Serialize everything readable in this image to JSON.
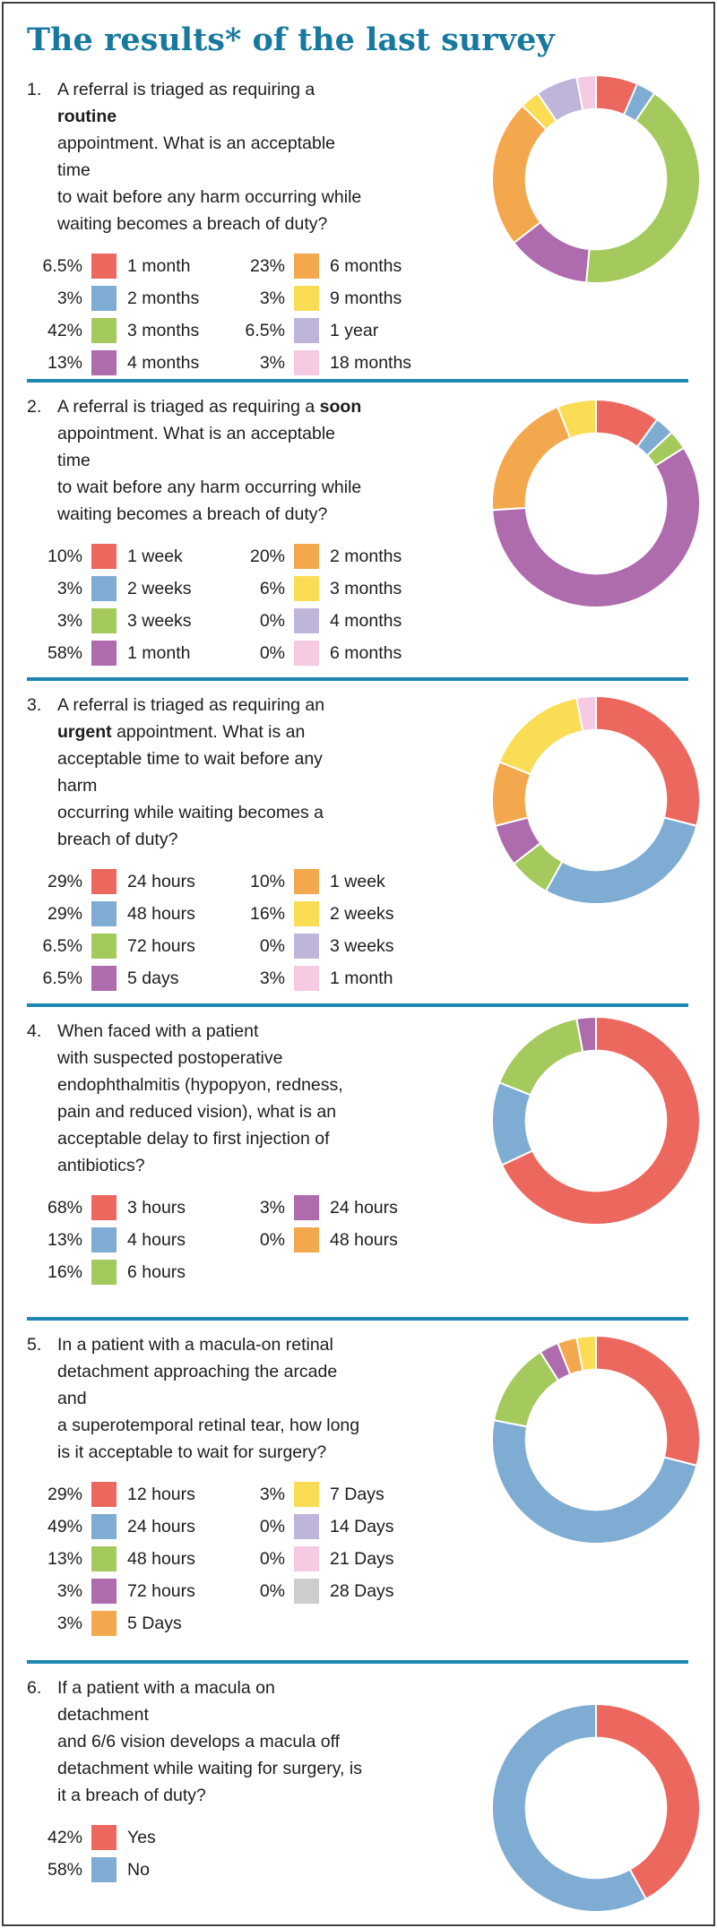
{
  "title": "The results* of the last survey",
  "divider_color": "#1F86B4",
  "title_color": "#17799E",
  "palette": {
    "red": "#EC685F",
    "blue": "#7EACD2",
    "green": "#A4C95C",
    "purple": "#AE6BAD",
    "orange": "#F4A84D",
    "yellow": "#FADD55",
    "lavender": "#BFB5DA",
    "pink": "#F5CAE2",
    "gray": "#CDCDCD"
  },
  "sections": [
    {
      "number": "1.",
      "question_pre": "A referral is triaged as requiring a ",
      "question_bold": "routine",
      "question_post": "\nappointment. What is an acceptable time\nto wait before any harm occurring while\nwaiting becomes a breach of duty?",
      "col_split": 4
    },
    {
      "number": "2.",
      "question_pre": "A referral is triaged as requiring a ",
      "question_bold": "soon",
      "question_post": "\nappointment. What is an acceptable time\nto wait before any harm occurring while\nwaiting becomes a breach of duty?",
      "col_split": 4
    },
    {
      "number": "3.",
      "question_pre": "A referral is triaged as requiring an\n",
      "question_bold": "urgent",
      "question_post": " appointment. What is an\nacceptable time to wait before any harm\noccurring while waiting becomes a\nbreach of duty?",
      "col_split": 4
    },
    {
      "number": "4.",
      "question_pre": "When faced with a patient\nwith suspected postoperative\nendophthalmitis (hypopyon, redness,\npain and reduced vision), what is an\nacceptable delay to first injection of\nantibiotics?",
      "question_bold": "",
      "question_post": "",
      "col_split": 3
    },
    {
      "number": "5.",
      "question_pre": "In a patient with a macula-on retinal\ndetachment approaching the arcade and\na superotemporal retinal tear, how long\nis it acceptable to wait for surgery?",
      "question_bold": "",
      "question_post": "",
      "col_split": 5
    },
    {
      "number": "6.",
      "question_pre": "If a patient with a macula on detachment\nand 6/6 vision develops a macula off\ndetachment while waiting for surgery, is\nit a breach of duty?",
      "question_bold": "",
      "question_post": "",
      "col_split": 2
    }
  ],
  "chart_data": [
    {
      "type": "pie",
      "donut": true,
      "title": "Q1 routine referral acceptable wait",
      "categories": [
        "1 month",
        "2 months",
        "3 months",
        "4 months",
        "6 months",
        "9 months",
        "1 year",
        "18 months"
      ],
      "values": [
        6.5,
        3,
        42,
        13,
        23,
        3,
        6.5,
        3
      ],
      "pct_labels": [
        "6.5%",
        "3%",
        "42%",
        "13%",
        "23%",
        "3%",
        "6.5%",
        "3%"
      ],
      "colors": [
        "#EC685F",
        "#7EACD2",
        "#A4C95C",
        "#AE6BAD",
        "#F4A84D",
        "#FADD55",
        "#BFB5DA",
        "#F5CAE2"
      ],
      "start_angle_deg": 0,
      "direction": "clockwise"
    },
    {
      "type": "pie",
      "donut": true,
      "title": "Q2 soon referral acceptable wait",
      "categories": [
        "1 week",
        "2 weeks",
        "3 weeks",
        "1 month",
        "2 months",
        "3 months",
        "4 months",
        "6 months"
      ],
      "values": [
        10,
        3,
        3,
        58,
        20,
        6,
        0,
        0
      ],
      "pct_labels": [
        "10%",
        "3%",
        "3%",
        "58%",
        "20%",
        "6%",
        "0%",
        "0%"
      ],
      "colors": [
        "#EC685F",
        "#7EACD2",
        "#A4C95C",
        "#AE6BAD",
        "#F4A84D",
        "#FADD55",
        "#BFB5DA",
        "#F5CAE2"
      ],
      "start_angle_deg": 0,
      "direction": "clockwise"
    },
    {
      "type": "pie",
      "donut": true,
      "title": "Q3 urgent referral acceptable wait",
      "categories": [
        "24 hours",
        "48 hours",
        "72 hours",
        "5 days",
        "1 week",
        "2 weeks",
        "3 weeks",
        "1 month"
      ],
      "values": [
        29,
        29,
        6.5,
        6.5,
        10,
        16,
        0,
        3
      ],
      "pct_labels": [
        "29%",
        "29%",
        "6.5%",
        "6.5%",
        "10%",
        "16%",
        "0%",
        "3%"
      ],
      "colors": [
        "#EC685F",
        "#7EACD2",
        "#A4C95C",
        "#AE6BAD",
        "#F4A84D",
        "#FADD55",
        "#BFB5DA",
        "#F5CAE2"
      ],
      "start_angle_deg": 0,
      "direction": "clockwise"
    },
    {
      "type": "pie",
      "donut": true,
      "title": "Q4 endophthalmitis delay to first injection",
      "categories": [
        "3 hours",
        "4 hours",
        "6 hours",
        "24 hours",
        "48 hours"
      ],
      "values": [
        68,
        13,
        16,
        3,
        0
      ],
      "pct_labels": [
        "68%",
        "13%",
        "16%",
        "3%",
        "0%"
      ],
      "colors": [
        "#EC685F",
        "#7EACD2",
        "#A4C95C",
        "#AE6BAD",
        "#F4A84D"
      ],
      "start_angle_deg": 0,
      "direction": "clockwise"
    },
    {
      "type": "pie",
      "donut": true,
      "title": "Q5 macula-on detachment wait for surgery",
      "categories": [
        "12 hours",
        "24 hours",
        "48 hours",
        "72 hours",
        "5 Days",
        "7 Days",
        "14 Days",
        "21 Days",
        "28 Days"
      ],
      "values": [
        29,
        49,
        13,
        3,
        3,
        3,
        0,
        0,
        0
      ],
      "pct_labels": [
        "29%",
        "49%",
        "13%",
        "3%",
        "3%",
        "3%",
        "0%",
        "0%",
        "0%"
      ],
      "colors": [
        "#EC685F",
        "#7EACD2",
        "#A4C95C",
        "#AE6BAD",
        "#F4A84D",
        "#FADD55",
        "#BFB5DA",
        "#F5CAE2",
        "#CDCDCD"
      ],
      "start_angle_deg": 0,
      "direction": "clockwise"
    },
    {
      "type": "pie",
      "donut": true,
      "title": "Q6 macula off while waiting breach of duty",
      "categories": [
        "Yes",
        "No"
      ],
      "values": [
        42,
        58
      ],
      "pct_labels": [
        "42%",
        "58%"
      ],
      "colors": [
        "#EC685F",
        "#7EACD2"
      ],
      "start_angle_deg": 0,
      "direction": "clockwise"
    }
  ]
}
